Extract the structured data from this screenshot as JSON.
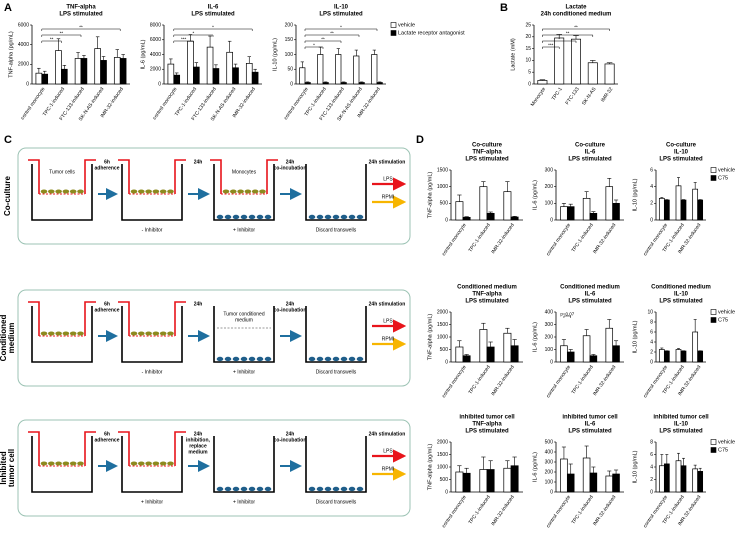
{
  "panel_labels": [
    "A",
    "B",
    "C",
    "D"
  ],
  "chart_data": [
    {
      "type": "bar",
      "title": [
        "TNF-alpha",
        "LPS stimulated"
      ],
      "y_label": "TNF-alpha (pg/mL)",
      "categories": [
        "control monocyte",
        "TPC-1-induced",
        "FTC-133-induced",
        "SK-N-AS-induced",
        "IMR-32-induced"
      ],
      "series": [
        {
          "color": "#ffffff",
          "values": [
            1100,
            3400,
            2600,
            3600,
            2700
          ],
          "errors": [
            500,
            1200,
            600,
            1200,
            800
          ]
        },
        {
          "color": "#000000",
          "values": [
            1000,
            1500,
            2600,
            2400,
            2600
          ],
          "errors": [
            300,
            400,
            300,
            400,
            400
          ]
        }
      ],
      "ylim": [
        0,
        6000
      ],
      "yticks": [
        0,
        2000,
        4000,
        6000
      ],
      "annotations": [
        {
          "text": "**",
          "between": [
            0,
            4
          ]
        },
        {
          "text": "**",
          "between": [
            0,
            2
          ]
        },
        {
          "text": "**",
          "between": [
            0,
            1
          ]
        }
      ]
    },
    {
      "type": "bar",
      "title": [
        "IL-6",
        "LPS stimulated"
      ],
      "y_label": "IL-6 (pg/mL)",
      "categories": [
        "control monocyte",
        "TPC-1-induced",
        "FTC-133-induced",
        "SK-N-AS-induced",
        "IMR-32-induced"
      ],
      "series": [
        {
          "color": "#ffffff",
          "values": [
            2700,
            5800,
            5000,
            4300,
            2800
          ],
          "errors": [
            700,
            900,
            1500,
            1500,
            900
          ]
        },
        {
          "color": "#000000",
          "values": [
            1200,
            2300,
            2100,
            2200,
            1600
          ],
          "errors": [
            300,
            600,
            500,
            500,
            400
          ]
        }
      ],
      "ylim": [
        0,
        8000
      ],
      "yticks": [
        0,
        2000,
        4000,
        6000,
        8000
      ],
      "annotations": [
        {
          "text": "*",
          "between": [
            0,
            4
          ]
        },
        {
          "text": "*",
          "between": [
            0,
            2
          ]
        },
        {
          "text": "***",
          "between": [
            0,
            1
          ]
        }
      ]
    },
    {
      "type": "bar",
      "title": [
        "IL-10",
        "LPS stimulated"
      ],
      "y_label": "IL-10 (pg/mL)",
      "categories": [
        "control monocyte",
        "TPC-1-induced",
        "FTC-133-induced",
        "SK-N-AS-induced",
        "IMR-32-induced"
      ],
      "series": [
        {
          "name": "vehicle",
          "color": "#ffffff",
          "values": [
            55,
            100,
            100,
            95,
            100
          ],
          "errors": [
            20,
            25,
            20,
            20,
            15
          ]
        },
        {
          "name": "Lactate receptor antagonist",
          "color": "#000000",
          "values": [
            5,
            5,
            5,
            5,
            5
          ],
          "errors": [
            2,
            2,
            2,
            2,
            2
          ]
        }
      ],
      "ylim": [
        0,
        200
      ],
      "yticks": [
        0,
        50,
        100,
        150,
        200
      ],
      "annotations": [
        {
          "text": "*",
          "between": [
            0,
            4
          ]
        },
        {
          "text": "**",
          "between": [
            0,
            3
          ]
        },
        {
          "text": "**",
          "between": [
            0,
            2
          ]
        },
        {
          "text": "*",
          "between": [
            0,
            1
          ]
        }
      ]
    },
    {
      "type": "bar",
      "title": [
        "Lactate",
        "24h conditioned medium"
      ],
      "y_label": "Lactate (mM)",
      "categories": [
        "Monocyte",
        "TPC-1",
        "FTC-133",
        "SK-N-AS",
        "IMR-32"
      ],
      "series": [
        {
          "color": "#ffffff",
          "values": [
            1.5,
            19.5,
            19,
            9,
            8.5
          ],
          "errors": [
            0.3,
            1.5,
            1.5,
            1,
            0.5
          ]
        }
      ],
      "ylim": [
        0,
        25
      ],
      "yticks": [
        0,
        5,
        10,
        15,
        20,
        25
      ],
      "annotations": [
        {
          "text": "**",
          "between": [
            0,
            4
          ]
        },
        {
          "text": "**",
          "between": [
            0,
            3
          ]
        },
        {
          "text": "*",
          "between": [
            0,
            2
          ]
        },
        {
          "text": "***",
          "between": [
            0,
            1
          ]
        }
      ]
    },
    {
      "type": "bar",
      "title": [
        "Co-culture",
        "TNF-alpha",
        "LPS stimulated"
      ],
      "y_label": "TNF-alpha (pg/mL)",
      "categories": [
        "control monocyte",
        "TPC-1-induced",
        "IMR-32-induced"
      ],
      "series": [
        {
          "color": "#ffffff",
          "values": [
            550,
            1000,
            850
          ],
          "errors": [
            200,
            150,
            300
          ]
        },
        {
          "color": "#000000",
          "values": [
            80,
            200,
            90
          ],
          "errors": [
            20,
            40,
            20
          ]
        }
      ],
      "ylim": [
        0,
        1500
      ],
      "yticks": [
        0,
        500,
        1000,
        1500
      ]
    },
    {
      "type": "bar",
      "title": [
        "Co-culture",
        "IL-6",
        "LPS stimulated"
      ],
      "y_label": "IL-6 (pg/mL)",
      "categories": [
        "control monocyte",
        "TPC-1-induced",
        "IMR-32-induced"
      ],
      "series": [
        {
          "color": "#ffffff",
          "values": [
            80,
            130,
            200
          ],
          "errors": [
            20,
            40,
            50
          ]
        },
        {
          "color": "#000000",
          "values": [
            80,
            40,
            100
          ],
          "errors": [
            15,
            10,
            20
          ]
        }
      ],
      "ylim": [
        0,
        300
      ],
      "yticks": [
        0,
        100,
        200,
        300
      ]
    },
    {
      "type": "bar",
      "title": [
        "Co-culture",
        "IL-10",
        "LPS stimulated"
      ],
      "y_label": "IL-10 (pg/mL)",
      "categories": [
        "control monocyte",
        "TPC-1-induced",
        "IMR-32-induced"
      ],
      "series": [
        {
          "name": "vehicle",
          "color": "#ffffff",
          "values": [
            2.6,
            4.1,
            3.7
          ],
          "errors": [
            0.1,
            1,
            0.8
          ]
        },
        {
          "name": "C75",
          "color": "#000000",
          "values": [
            2.4,
            2.4,
            2.4
          ],
          "errors": [
            0.05,
            0.05,
            0.05
          ]
        }
      ],
      "ylim": [
        0,
        6
      ],
      "yticks": [
        0,
        2,
        4,
        6
      ]
    },
    {
      "type": "bar",
      "title": [
        "Conditioned medium",
        "TNF-alpha",
        "LPS stimulated"
      ],
      "y_label": "TNF-alpha (pg/mL)",
      "categories": [
        "control monocyte",
        "TPC-1-induced",
        "IMR-32-induced"
      ],
      "series": [
        {
          "color": "#ffffff",
          "values": [
            600,
            1300,
            1150
          ],
          "errors": [
            250,
            250,
            200
          ]
        },
        {
          "color": "#000000",
          "values": [
            250,
            600,
            650
          ],
          "errors": [
            50,
            200,
            250
          ]
        }
      ],
      "ylim": [
        0,
        2000
      ],
      "yticks": [
        0,
        500,
        1000,
        1500,
        2000
      ]
    },
    {
      "type": "bar",
      "title": [
        "Conditioned medium",
        "IL-6",
        "LPS stimulated"
      ],
      "y_label": "IL-6 (pg/mL)",
      "categories": [
        "control monocyte",
        "TPC-1-induced",
        "IMR-32-induced"
      ],
      "series": [
        {
          "color": "#ffffff",
          "values": [
            130,
            210,
            270
          ],
          "errors": [
            50,
            50,
            70
          ]
        },
        {
          "color": "#000000",
          "values": [
            80,
            50,
            130
          ],
          "errors": [
            20,
            10,
            40
          ]
        }
      ],
      "ylim": [
        0,
        400
      ],
      "yticks": [
        0,
        100,
        200,
        300,
        400
      ],
      "annotations": [
        {
          "text": "p=0.07",
          "between": [
            0,
            0
          ]
        }
      ]
    },
    {
      "type": "bar",
      "title": [
        "Conditioned medium",
        "IL-10",
        "LPS stimulated"
      ],
      "y_label": "IL-10 (pg/mL)",
      "categories": [
        "control monocyte",
        "TPC-1-induced",
        "IMR-32-induced"
      ],
      "series": [
        {
          "name": "vehicle",
          "color": "#ffffff",
          "values": [
            2.5,
            2.5,
            6
          ],
          "errors": [
            0.3,
            0.2,
            2.5
          ]
        },
        {
          "name": "C75",
          "color": "#000000",
          "values": [
            2.2,
            2.2,
            2.2
          ],
          "errors": [
            0.05,
            0.05,
            0.05
          ]
        }
      ],
      "ylim": [
        0,
        10
      ],
      "yticks": [
        0,
        2,
        4,
        6,
        8,
        10
      ]
    },
    {
      "type": "bar",
      "title": [
        "inhibited tumor cell",
        "TNF-alpha",
        "LPS stimulated"
      ],
      "y_label": "TNF-alpha (pg/mL)",
      "categories": [
        "control monocyte",
        "TPC-1-induced",
        "IMR-32-induced"
      ],
      "series": [
        {
          "color": "#ffffff",
          "values": [
            800,
            900,
            950
          ],
          "errors": [
            250,
            500,
            300
          ]
        },
        {
          "color": "#000000",
          "values": [
            750,
            900,
            1050
          ],
          "errors": [
            200,
            350,
            350
          ]
        }
      ],
      "ylim": [
        0,
        2000
      ],
      "yticks": [
        0,
        500,
        1000,
        1500,
        2000
      ]
    },
    {
      "type": "bar",
      "title": [
        "inhibited tumor cell",
        "IL-6",
        "LPS stimulated"
      ],
      "y_label": "IL-6 (pg/mL)",
      "categories": [
        "control monocyte",
        "TPC-1-induced",
        "IMR-32-induced"
      ],
      "series": [
        {
          "color": "#ffffff",
          "values": [
            330,
            340,
            160
          ],
          "errors": [
            120,
            120,
            50
          ]
        },
        {
          "color": "#000000",
          "values": [
            180,
            190,
            180
          ],
          "errors": [
            100,
            60,
            40
          ]
        }
      ],
      "ylim": [
        0,
        500
      ],
      "yticks": [
        0,
        100,
        200,
        300,
        400,
        500
      ]
    },
    {
      "type": "bar",
      "title": [
        "inhibited tumor cell",
        "IL-10",
        "LPS stimulated"
      ],
      "y_label": "IL-10 (pg/mL)",
      "categories": [
        "control monocyte",
        "TPC-1-induced",
        "IMR-32-induced"
      ],
      "series": [
        {
          "name": "vehicle",
          "color": "#ffffff",
          "values": [
            4.2,
            5,
            3.7
          ],
          "errors": [
            1.8,
            1.2,
            0.6
          ]
        },
        {
          "name": "C75",
          "color": "#000000",
          "values": [
            4.5,
            4.2,
            3.3
          ],
          "errors": [
            1.5,
            1.2,
            0.5
          ]
        }
      ],
      "ylim": [
        0,
        8
      ],
      "yticks": [
        0,
        2,
        4,
        6,
        8
      ]
    }
  ],
  "diagram": {
    "rows": [
      {
        "label": [
          "Co-culture"
        ],
        "steps": [
          [
            "6h",
            "adherence"
          ],
          [
            "24h"
          ],
          [
            "24h",
            "co-incubation"
          ],
          [
            "24h stimulation"
          ]
        ],
        "inside_labels": [
          {
            "well": 0,
            "text": "Tumor cells"
          },
          {
            "well": 2,
            "text": "Monocytes"
          }
        ],
        "below_labels": [
          {
            "well": 1,
            "text": "- Inhibitor"
          },
          {
            "well": 2,
            "text": "+ Inhibitor"
          },
          {
            "well": 3,
            "text": "Discard transwells"
          }
        ],
        "outputs": [
          "LPS",
          "RPMI"
        ]
      },
      {
        "label": [
          "Conditioned",
          "medium"
        ],
        "steps": [
          [
            "6h",
            "adherence"
          ],
          [
            "24h"
          ],
          [
            "24h",
            "co-incubation"
          ],
          [
            "24h stimulation"
          ]
        ],
        "inside_labels": [
          {
            "well": 2,
            "text": "Tumor conditioned"
          },
          {
            "well": 2,
            "text": "medium"
          }
        ],
        "below_labels": [
          {
            "well": 1,
            "text": "- Inhibitor"
          },
          {
            "well": 2,
            "text": "+ Inhibitor"
          },
          {
            "well": 3,
            "text": "Discard transwells"
          }
        ],
        "outputs": [
          "LPS",
          "RPMI"
        ]
      },
      {
        "label": [
          "Inhibited",
          "tumor cell"
        ],
        "steps": [
          [
            "6h",
            "adherence"
          ],
          [
            "24h",
            "inhibition,",
            "replace",
            "medium"
          ],
          [
            "24h",
            "co-incubation"
          ],
          [
            "24h stimulation"
          ]
        ],
        "inside_labels": [],
        "below_labels": [
          {
            "well": 1,
            "text": "+ Inhibitor"
          },
          {
            "well": 2,
            "text": "+ Inhibitor"
          },
          {
            "well": 3,
            "text": "Discard transwells"
          }
        ],
        "outputs": [
          "LPS",
          "RPMI"
        ]
      }
    ]
  }
}
